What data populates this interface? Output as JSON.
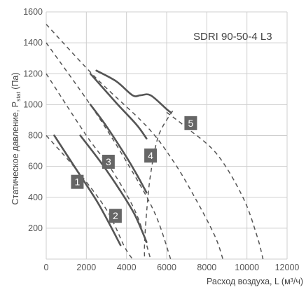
{
  "chart_data": {
    "type": "line",
    "title": "SDRI 90-50-4 L3",
    "xlabel": "Расход воздуха, L (м³/ч)",
    "ylabel_main": "Статическое давление, P",
    "ylabel_sub": "stat",
    "ylabel_unit": " (Па)",
    "xlim": [
      0,
      12000
    ],
    "ylim": [
      0,
      1600
    ],
    "x_ticks": [
      0,
      2000,
      4000,
      6000,
      8000,
      10000,
      12000
    ],
    "y_ticks": [
      200,
      400,
      600,
      800,
      1000,
      1200,
      1400,
      1600
    ],
    "grid": true,
    "colors": {
      "curve": "#555555",
      "grid": "#cfcfcf",
      "badge": "#666666"
    },
    "dashed_curves": [
      {
        "name": "",
        "points": [
          [
            0,
            800
          ],
          [
            1500,
            580
          ],
          [
            3000,
            320
          ],
          [
            3900,
            80
          ],
          [
            4300,
            0
          ]
        ]
      },
      {
        "name": "",
        "points": [
          [
            0,
            1200
          ],
          [
            2000,
            800
          ],
          [
            3300,
            570
          ],
          [
            4500,
            290
          ],
          [
            5200,
            0
          ]
        ]
      },
      {
        "name": "",
        "points": [
          [
            0,
            1400
          ],
          [
            2300,
            980
          ],
          [
            4000,
            630
          ],
          [
            5400,
            300
          ],
          [
            6200,
            0
          ]
        ]
      },
      {
        "name": "",
        "points": [
          [
            0,
            1520
          ],
          [
            2500,
            1170
          ],
          [
            5000,
            860
          ],
          [
            6300,
            640
          ],
          [
            7400,
            400
          ],
          [
            8400,
            150
          ],
          [
            8800,
            0
          ]
        ]
      },
      {
        "name": "",
        "points": [
          [
            6000,
            950
          ],
          [
            7000,
            850
          ],
          [
            8500,
            680
          ],
          [
            9800,
            400
          ],
          [
            10500,
            150
          ],
          [
            10800,
            0
          ]
        ]
      },
      {
        "name": "",
        "points": [
          [
            6300,
            960
          ],
          [
            5600,
            800
          ],
          [
            5200,
            550
          ],
          [
            5000,
            300
          ],
          [
            4900,
            100
          ],
          [
            4900,
            0
          ]
        ]
      }
    ],
    "series": [
      {
        "name": "1",
        "label_x": 1550,
        "label_y": 500,
        "points": [
          [
            400,
            800
          ],
          [
            1500,
            580
          ],
          [
            2500,
            380
          ],
          [
            3100,
            240
          ],
          [
            3700,
            90
          ]
        ]
      },
      {
        "name": "2",
        "label_x": 3450,
        "label_y": 280,
        "points": [
          [
            1700,
            800
          ],
          [
            2700,
            630
          ],
          [
            3600,
            460
          ],
          [
            4400,
            290
          ],
          [
            5000,
            110
          ]
        ]
      },
      {
        "name": "3",
        "label_x": 3100,
        "label_y": 630,
        "points": [
          [
            2200,
            1000
          ],
          [
            3000,
            860
          ],
          [
            4000,
            660
          ],
          [
            4500,
            550
          ],
          [
            5000,
            430
          ]
        ]
      },
      {
        "name": "4",
        "label_x": 5200,
        "label_y": 670,
        "points": [
          [
            2200,
            1200
          ],
          [
            3500,
            1010
          ],
          [
            4500,
            870
          ],
          [
            5000,
            780
          ]
        ]
      },
      {
        "name": "5",
        "label_x": 7200,
        "label_y": 880,
        "points": [
          [
            2500,
            1220
          ],
          [
            3500,
            1150
          ],
          [
            4300,
            1060
          ],
          [
            4700,
            1060
          ],
          [
            5200,
            1060
          ],
          [
            6000,
            970
          ],
          [
            6200,
            950
          ]
        ]
      }
    ]
  }
}
